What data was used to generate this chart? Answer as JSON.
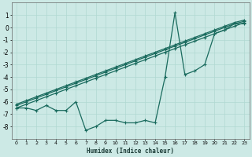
{
  "xlabel": "Humidex (Indice chaleur)",
  "background_color": "#cce9e5",
  "grid_color": "#b0d8d2",
  "line_color": "#1a6b5e",
  "x_values": [
    0,
    1,
    2,
    3,
    4,
    5,
    6,
    7,
    8,
    9,
    10,
    11,
    12,
    13,
    14,
    15,
    16,
    17,
    18,
    19,
    20,
    21,
    22,
    23
  ],
  "jagged": [
    -6.5,
    -6.5,
    -6.7,
    -6.3,
    -6.7,
    -6.7,
    -6.0,
    -8.3,
    -8.0,
    -7.5,
    -7.5,
    -7.7,
    -7.7,
    -7.5,
    -7.7,
    -4.0,
    1.2,
    -3.8,
    -3.5,
    -3.0,
    -0.5,
    -0.2,
    0.3,
    0.3
  ],
  "trend1": [
    -6.5,
    -6.2,
    -5.9,
    -5.6,
    -5.3,
    -5.0,
    -4.7,
    -4.4,
    -4.1,
    -3.8,
    -3.5,
    -3.2,
    -2.9,
    -2.6,
    -2.3,
    -2.0,
    -1.7,
    -1.4,
    -1.1,
    -0.8,
    -0.5,
    -0.2,
    0.1,
    0.4
  ],
  "trend2": [
    -6.3,
    -6.0,
    -5.7,
    -5.4,
    -5.1,
    -4.8,
    -4.5,
    -4.2,
    -3.9,
    -3.6,
    -3.3,
    -3.0,
    -2.7,
    -2.4,
    -2.1,
    -1.8,
    -1.5,
    -1.2,
    -0.9,
    -0.6,
    -0.3,
    0.0,
    0.3,
    0.5
  ],
  "trend3": [
    -6.2,
    -5.9,
    -5.6,
    -5.3,
    -5.0,
    -4.7,
    -4.4,
    -4.1,
    -3.8,
    -3.5,
    -3.2,
    -2.9,
    -2.6,
    -2.3,
    -2.0,
    -1.7,
    -1.4,
    -1.1,
    -0.8,
    -0.5,
    -0.2,
    0.1,
    0.4,
    0.6
  ],
  "ylim": [
    -9,
    2
  ],
  "xlim": [
    -0.5,
    23.5
  ],
  "yticks": [
    1,
    0,
    -1,
    -2,
    -3,
    -4,
    -5,
    -6,
    -7,
    -8
  ],
  "xticks": [
    0,
    1,
    2,
    3,
    4,
    5,
    6,
    7,
    8,
    9,
    10,
    11,
    12,
    13,
    14,
    15,
    16,
    17,
    18,
    19,
    20,
    21,
    22,
    23
  ]
}
